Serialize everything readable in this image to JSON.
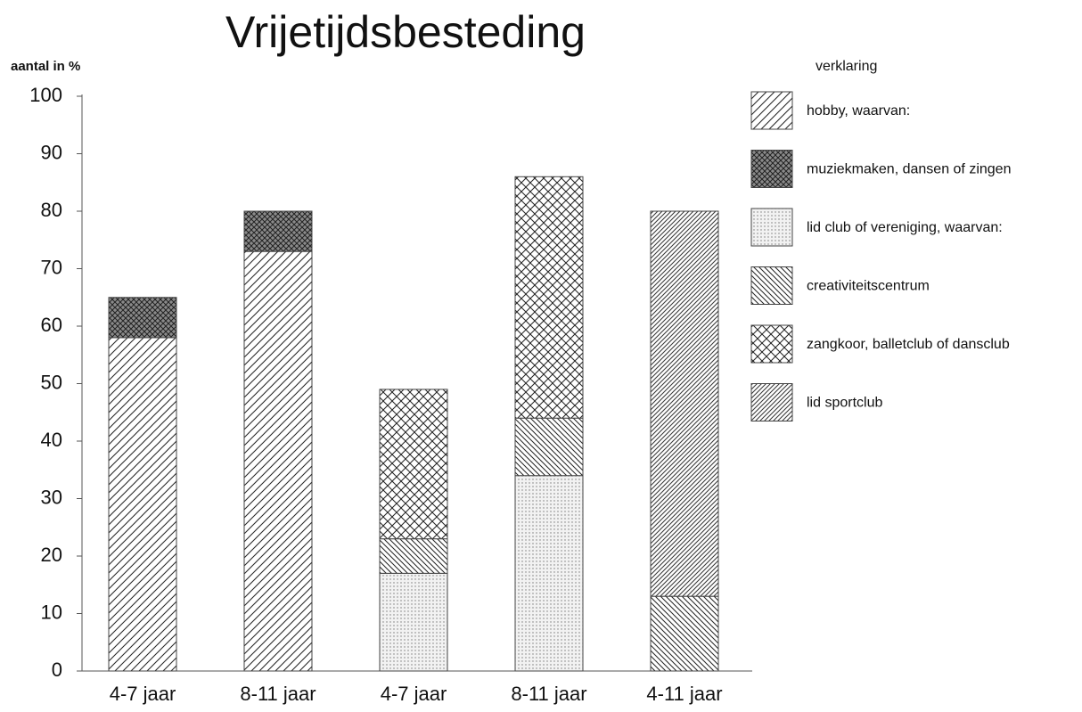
{
  "chart_data": {
    "type": "stacked_bar",
    "title": "Vrijetijdsbesteding",
    "y_label": "aantal in %",
    "legend_title": "verklaring",
    "categories": [
      "4-7 jaar",
      "8-11 jaar",
      "4-7 jaar",
      "8-11 jaar",
      "4-11 jaar"
    ],
    "series": [
      {
        "name": "hobby, waarvan:",
        "pattern": "slash",
        "color": "#222222",
        "values": [
          58,
          73,
          null,
          null,
          null
        ]
      },
      {
        "name": "muziekmaken, dansen of zingen",
        "pattern": "crossdark",
        "color": "#222222",
        "values": [
          7,
          7,
          null,
          null,
          null
        ]
      },
      {
        "name": "lid club of vereniging, waarvan:",
        "pattern": "dots",
        "color": "#777777",
        "values": [
          null,
          null,
          17,
          34,
          null
        ]
      },
      {
        "name": "creativiteitscentrum",
        "pattern": "backslash",
        "color": "#222222",
        "values": [
          null,
          null,
          6,
          10,
          13
        ]
      },
      {
        "name": "zangkoor, balletclub of dansclub",
        "pattern": "cross",
        "color": "#222222",
        "values": [
          null,
          null,
          26,
          42,
          null
        ]
      },
      {
        "name": "lid sportclub",
        "pattern": "slashdense",
        "color": "#333333",
        "values": [
          null,
          null,
          null,
          null,
          67
        ]
      }
    ],
    "ylim": [
      0,
      100
    ],
    "yticks": [
      0,
      10,
      20,
      30,
      40,
      50,
      60,
      70,
      80,
      90,
      100
    ],
    "grid": false,
    "legend": "right"
  }
}
